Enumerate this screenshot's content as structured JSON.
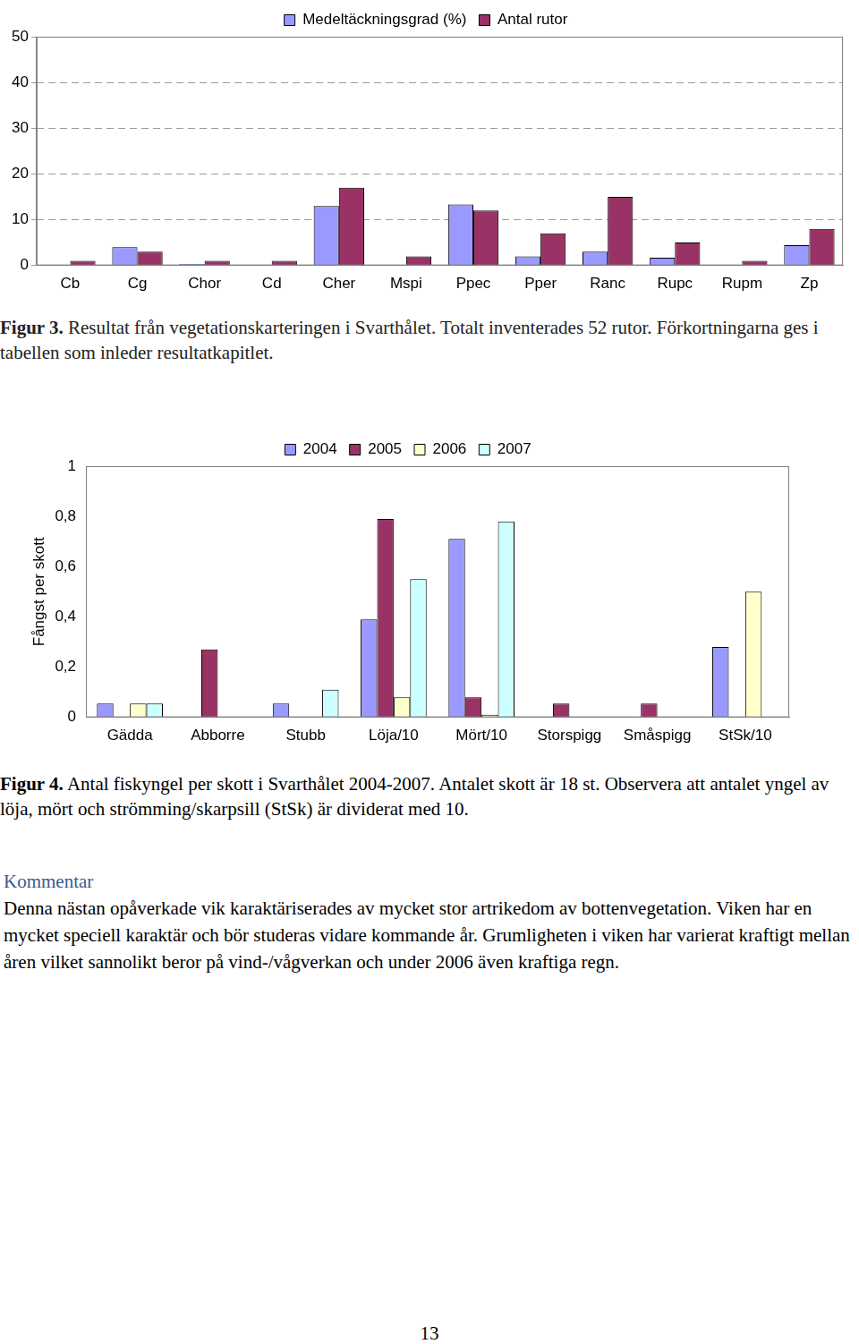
{
  "chart_data": [
    {
      "type": "bar",
      "categories": [
        "Cb",
        "Cg",
        "Chor",
        "Cd",
        "Cher",
        "Mspi",
        "Ppec",
        "Pper",
        "Ranc",
        "Rupc",
        "Rupm",
        "Zp"
      ],
      "series": [
        {
          "name": "Medeltäckningsgrad (%)",
          "color": "#9999ff",
          "values": [
            0,
            4,
            0.3,
            0,
            13,
            0,
            13.3,
            2,
            3,
            1.7,
            0,
            4.4
          ]
        },
        {
          "name": "Antal rutor",
          "color": "#993366",
          "values": [
            1,
            3,
            1,
            1,
            17,
            2,
            12,
            7,
            15,
            5,
            1,
            8
          ]
        }
      ],
      "ylim": [
        0,
        50
      ],
      "yticks": [
        0,
        10,
        20,
        30,
        40,
        50
      ],
      "grid": true,
      "legend": "top"
    },
    {
      "type": "bar",
      "y_label": "Fångst per skott",
      "categories": [
        "Gädda",
        "Abborre",
        "Stubb",
        "Löja/10",
        "Mört/10",
        "Storspigg",
        "Småspigg",
        "StSk/10"
      ],
      "series": [
        {
          "name": "2004",
          "color": "#9999ff",
          "values": [
            0.055,
            0,
            0.055,
            0.39,
            0.71,
            0,
            0,
            0.28
          ]
        },
        {
          "name": "2005",
          "color": "#993366",
          "values": [
            0,
            0.27,
            0,
            0.79,
            0.08,
            0.055,
            0.055,
            0
          ]
        },
        {
          "name": "2006",
          "color": "#ffffcc",
          "values": [
            0.055,
            0,
            0,
            0.08,
            0.01,
            0,
            0,
            0.5
          ]
        },
        {
          "name": "2007",
          "color": "#ccffff",
          "values": [
            0.055,
            0,
            0.11,
            0.55,
            0.78,
            0,
            0,
            0
          ]
        }
      ],
      "ylim": [
        0,
        1
      ],
      "yticks": [
        0,
        {
          "value": 0.2,
          "label": "0,2"
        },
        {
          "value": 0.4,
          "label": "0,4"
        },
        {
          "value": 0.6,
          "label": "0,6"
        },
        {
          "value": 0.8,
          "label": "0,8"
        },
        1
      ],
      "grid": false,
      "legend": "top"
    }
  ],
  "document": {
    "captions": [
      {
        "label": "Figur 3.",
        "text": "Resultat från vegetationskarteringen i Svarthålet. Totalt inventerades 52 rutor. Förkortningarna ges i tabellen som inleder resultatkapitlet."
      },
      {
        "label": "Figur 4.",
        "text": "Antal fiskyngel per skott i Svarthålet 2004-2007. Antalet skott är 18 st. Observera att antalet yngel av löja, mört och strömming/skarpsill (StSk) är dividerat med 10."
      }
    ],
    "comment": {
      "heading": "Kommentar",
      "text": "Denna nästan opåverkade vik karaktäriserades av mycket stor artrikedom av bottenvegetation. Viken har en mycket speciell karaktär och bör studeras vidare kommande år. Grumligheten i viken har varierat kraftigt mellan åren vilket sannolikt beror på vind-/vågverkan och under 2006 även kraftiga regn."
    },
    "page_number": "13"
  }
}
